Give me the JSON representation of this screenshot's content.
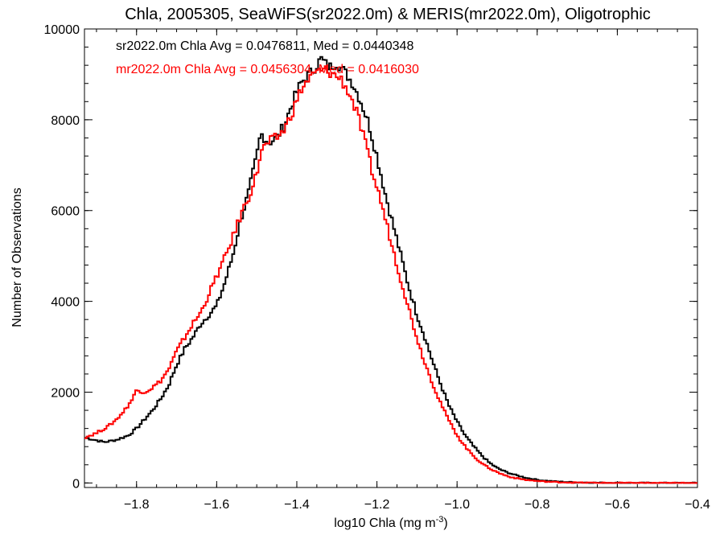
{
  "chart_data": {
    "type": "line",
    "style": "histogram-step",
    "title": "Chla, 2005305, SeaWiFS(sr2022.0m) & MERIS(mr2022.0m), Oligotrophic",
    "xlabel": "log10 Chla (mg m",
    "xlabel_sup": "-3",
    "xlabel_close": ")",
    "ylabel": "Number of Observations",
    "xlim": [
      -1.93,
      -0.4
    ],
    "ylim": [
      -100,
      10000
    ],
    "xticks": [
      -1.8,
      -1.6,
      -1.4,
      -1.2,
      -1.0,
      -0.8,
      -0.6,
      -0.4
    ],
    "xtick_labels": [
      "−1.8",
      "−1.6",
      "−1.4",
      "−1.2",
      "−1.0",
      "−0.8",
      "−0.6",
      "−0.4"
    ],
    "yticks": [
      0,
      2000,
      4000,
      6000,
      8000,
      10000
    ],
    "ytick_labels": [
      "0",
      "2000",
      "4000",
      "6000",
      "8000",
      "10000"
    ],
    "grid": false,
    "legend_position": "top-left",
    "series": [
      {
        "name": "sr2022.0m",
        "color": "#000000",
        "annotation": "sr2022.0m Chla Avg = 0.0476811, Med = 0.0440348",
        "points": [
          [
            -1.93,
            1000
          ],
          [
            -1.88,
            900
          ],
          [
            -1.85,
            950
          ],
          [
            -1.82,
            1050
          ],
          [
            -1.8,
            1200
          ],
          [
            -1.78,
            1400
          ],
          [
            -1.76,
            1600
          ],
          [
            -1.74,
            1850
          ],
          [
            -1.72,
            2150
          ],
          [
            -1.7,
            2600
          ],
          [
            -1.68,
            2950
          ],
          [
            -1.66,
            3200
          ],
          [
            -1.64,
            3500
          ],
          [
            -1.62,
            3700
          ],
          [
            -1.6,
            3900
          ],
          [
            -1.58,
            4400
          ],
          [
            -1.56,
            5000
          ],
          [
            -1.54,
            5800
          ],
          [
            -1.52,
            6400
          ],
          [
            -1.5,
            7200
          ],
          [
            -1.49,
            7700
          ],
          [
            -1.47,
            7500
          ],
          [
            -1.45,
            7600
          ],
          [
            -1.43,
            7900
          ],
          [
            -1.41,
            8400
          ],
          [
            -1.39,
            8800
          ],
          [
            -1.37,
            9000
          ],
          [
            -1.35,
            9200
          ],
          [
            -1.34,
            9350
          ],
          [
            -1.32,
            9150
          ],
          [
            -1.3,
            9250
          ],
          [
            -1.28,
            9050
          ],
          [
            -1.26,
            8800
          ],
          [
            -1.24,
            8400
          ],
          [
            -1.22,
            7900
          ],
          [
            -1.2,
            7200
          ],
          [
            -1.18,
            6400
          ],
          [
            -1.16,
            5700
          ],
          [
            -1.14,
            5000
          ],
          [
            -1.12,
            4300
          ],
          [
            -1.1,
            3700
          ],
          [
            -1.08,
            3200
          ],
          [
            -1.06,
            2650
          ],
          [
            -1.04,
            2150
          ],
          [
            -1.02,
            1700
          ],
          [
            -1.0,
            1350
          ],
          [
            -0.98,
            1050
          ],
          [
            -0.96,
            820
          ],
          [
            -0.94,
            620
          ],
          [
            -0.92,
            450
          ],
          [
            -0.9,
            330
          ],
          [
            -0.88,
            250
          ],
          [
            -0.86,
            190
          ],
          [
            -0.84,
            140
          ],
          [
            -0.82,
            100
          ],
          [
            -0.8,
            70
          ],
          [
            -0.78,
            50
          ],
          [
            -0.75,
            30
          ],
          [
            -0.72,
            18
          ],
          [
            -0.7,
            12
          ],
          [
            -0.65,
            6
          ],
          [
            -0.6,
            3
          ],
          [
            -0.55,
            1
          ],
          [
            -0.5,
            0
          ],
          [
            -0.4,
            0
          ]
        ]
      },
      {
        "name": "mr2022.0m",
        "color": "#ff0000",
        "annotation": "mr2022.0m Chla Avg = 0.0456304, Med = 0.0416030",
        "points": [
          [
            -1.93,
            1000
          ],
          [
            -1.9,
            1100
          ],
          [
            -1.87,
            1250
          ],
          [
            -1.85,
            1400
          ],
          [
            -1.83,
            1600
          ],
          [
            -1.81,
            1850
          ],
          [
            -1.8,
            2050
          ],
          [
            -1.78,
            2000
          ],
          [
            -1.76,
            2100
          ],
          [
            -1.74,
            2250
          ],
          [
            -1.72,
            2500
          ],
          [
            -1.7,
            2900
          ],
          [
            -1.68,
            3200
          ],
          [
            -1.66,
            3500
          ],
          [
            -1.64,
            3750
          ],
          [
            -1.62,
            4150
          ],
          [
            -1.6,
            4550
          ],
          [
            -1.58,
            4950
          ],
          [
            -1.56,
            5400
          ],
          [
            -1.54,
            5900
          ],
          [
            -1.52,
            6300
          ],
          [
            -1.5,
            6800
          ],
          [
            -1.49,
            7300
          ],
          [
            -1.47,
            7500
          ],
          [
            -1.45,
            7600
          ],
          [
            -1.43,
            7800
          ],
          [
            -1.41,
            8200
          ],
          [
            -1.39,
            8650
          ],
          [
            -1.37,
            8900
          ],
          [
            -1.35,
            9050
          ],
          [
            -1.33,
            9100
          ],
          [
            -1.31,
            9000
          ],
          [
            -1.29,
            8900
          ],
          [
            -1.27,
            8600
          ],
          [
            -1.25,
            8150
          ],
          [
            -1.23,
            7500
          ],
          [
            -1.21,
            6800
          ],
          [
            -1.19,
            6200
          ],
          [
            -1.17,
            5500
          ],
          [
            -1.15,
            4800
          ],
          [
            -1.13,
            4150
          ],
          [
            -1.11,
            3500
          ],
          [
            -1.09,
            2900
          ],
          [
            -1.07,
            2400
          ],
          [
            -1.05,
            1950
          ],
          [
            -1.03,
            1550
          ],
          [
            -1.01,
            1200
          ],
          [
            -0.99,
            920
          ],
          [
            -0.97,
            700
          ],
          [
            -0.95,
            520
          ],
          [
            -0.93,
            380
          ],
          [
            -0.91,
            280
          ],
          [
            -0.89,
            200
          ],
          [
            -0.87,
            140
          ],
          [
            -0.85,
            100
          ],
          [
            -0.83,
            70
          ],
          [
            -0.81,
            50
          ],
          [
            -0.79,
            35
          ],
          [
            -0.76,
            20
          ],
          [
            -0.72,
            10
          ],
          [
            -0.68,
            5
          ],
          [
            -0.62,
            2
          ],
          [
            -0.55,
            1
          ],
          [
            -0.5,
            0
          ],
          [
            -0.4,
            0
          ]
        ]
      }
    ]
  }
}
